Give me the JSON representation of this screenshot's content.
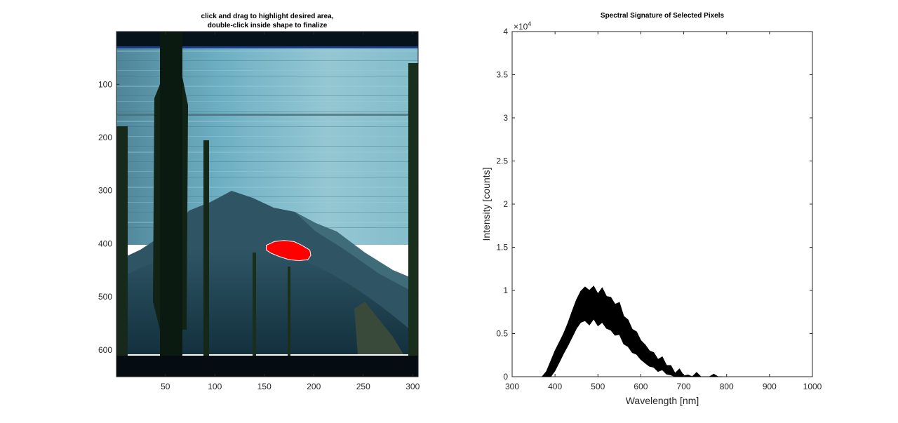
{
  "chart_data": [
    {
      "type": "image",
      "title": [
        "click and drag to highlight desired area,",
        "double-click inside shape to finalize"
      ],
      "x_ticks": [
        50,
        100,
        150,
        200,
        250,
        300
      ],
      "y_ticks": [
        100,
        200,
        300,
        400,
        500,
        600
      ],
      "xlim": [
        0.5,
        305.5
      ],
      "ylim": [
        0.5,
        650.5
      ],
      "y_reversed": true,
      "selection": {
        "color": "#ff0000",
        "outline_color": "#ffffff",
        "polygon": [
          [
            152,
            403
          ],
          [
            160,
            396
          ],
          [
            170,
            394
          ],
          [
            180,
            396
          ],
          [
            188,
            403
          ],
          [
            196,
            412
          ],
          [
            197,
            422
          ],
          [
            194,
            430
          ],
          [
            185,
            432
          ],
          [
            175,
            430
          ],
          [
            165,
            424
          ],
          [
            157,
            418
          ],
          [
            152,
            412
          ]
        ]
      },
      "colors": {
        "sky_top": "#5a93a8",
        "sky_bottom": "#8fc3cf",
        "water": "#203e4e",
        "mountain": "#2e4d5a",
        "tree": "#0b1a10",
        "border": "#050d12"
      }
    },
    {
      "type": "area",
      "title": "Spectral Signature of Selected Pixels",
      "xlabel": "Wavelength [nm]",
      "ylabel": "Intensity [counts]",
      "xlim": [
        300,
        1000
      ],
      "ylim": [
        0,
        40000
      ],
      "x_ticks": [
        300,
        400,
        500,
        600,
        700,
        800,
        900,
        1000
      ],
      "y_ticks": [
        0,
        0.5,
        1,
        1.5,
        2,
        2.5,
        3,
        3.5,
        4
      ],
      "y_exponent": "×10",
      "y_exponent_power": "4",
      "fill_color": "#000000",
      "x": [
        370,
        380,
        390,
        400,
        410,
        420,
        430,
        440,
        450,
        460,
        470,
        480,
        490,
        500,
        510,
        520,
        530,
        540,
        550,
        560,
        570,
        580,
        590,
        600,
        610,
        620,
        630,
        640,
        650,
        660,
        670,
        680,
        690,
        700,
        710,
        720,
        730,
        740,
        750,
        760,
        770,
        780,
        790
      ],
      "upper": [
        0,
        600,
        1800,
        3000,
        4000,
        5000,
        6200,
        7600,
        8900,
        9900,
        10400,
        10000,
        10500,
        9600,
        10300,
        9300,
        9200,
        8400,
        8600,
        7000,
        6600,
        5500,
        5200,
        4200,
        3700,
        3000,
        2800,
        2000,
        2300,
        1300,
        1300,
        400,
        900,
        100,
        200,
        0,
        500,
        0,
        0,
        0,
        300,
        0,
        0
      ],
      "lower": [
        0,
        0,
        0,
        700,
        1700,
        2700,
        3600,
        4600,
        5600,
        6300,
        6500,
        6000,
        6700,
        5900,
        6300,
        5600,
        5400,
        4800,
        4900,
        3800,
        3500,
        2800,
        2600,
        2000,
        1600,
        1200,
        1100,
        600,
        800,
        300,
        200,
        0,
        0,
        0,
        0,
        0,
        0,
        0,
        0,
        0,
        0,
        0,
        0
      ]
    }
  ]
}
